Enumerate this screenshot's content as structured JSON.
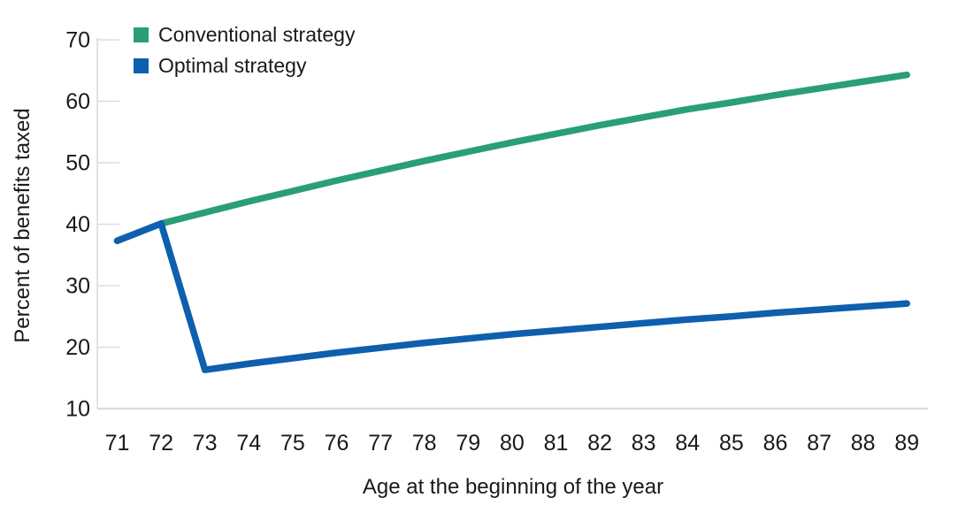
{
  "figure": {
    "background": "#ffffff",
    "text_color": "#1a1a1a",
    "axis_color": "#d8dde3"
  },
  "legend": {
    "items": [
      {
        "label": "Conventional strategy",
        "color": "#2a9e79"
      },
      {
        "label": "Optimal strategy",
        "color": "#0e5fad"
      }
    ]
  },
  "chart_data": {
    "type": "line",
    "title": "",
    "xlabel": "Age at the beginning of the year",
    "ylabel": "Percent of benefits taxed",
    "x": [
      71,
      72,
      73,
      74,
      75,
      76,
      77,
      78,
      79,
      80,
      81,
      82,
      83,
      84,
      85,
      86,
      87,
      88,
      89
    ],
    "series": [
      {
        "name": "Conventional strategy",
        "color": "#2a9e79",
        "values": [
          37.3,
          40.1,
          41.9,
          43.7,
          45.4,
          47.1,
          48.7,
          50.3,
          51.8,
          53.3,
          54.7,
          56.1,
          57.4,
          58.7,
          59.8,
          61.0,
          62.1,
          63.2,
          64.3
        ]
      },
      {
        "name": "Optimal strategy",
        "color": "#0e5fad",
        "values": [
          37.3,
          40.1,
          16.3,
          17.3,
          18.2,
          19.1,
          19.9,
          20.7,
          21.4,
          22.1,
          22.7,
          23.3,
          23.9,
          24.5,
          25.0,
          25.6,
          26.1,
          26.6,
          27.1
        ]
      }
    ],
    "ylim": [
      10,
      70
    ],
    "yticks": [
      10,
      20,
      30,
      40,
      50,
      60,
      70
    ],
    "grid": false,
    "legend_position": "top-left"
  }
}
